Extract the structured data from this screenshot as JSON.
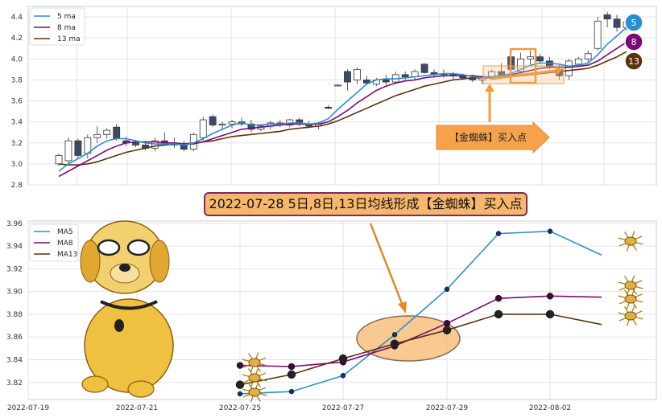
{
  "title": "2022-07-28 5日,8日,13日均线形成【金蜘蛛】买入点",
  "buy_label": "【金蜘蛛】买入点",
  "badges": [
    "5",
    "8",
    "13"
  ],
  "colors": {
    "ma5": "#2a8fd0",
    "ma8": "#7a0a7a",
    "ma13": "#5a3210",
    "candle_up": "#ffffff",
    "candle_down": "#3b4a6b",
    "highlight": "#f39c3c"
  },
  "chart_data": [
    {
      "type": "candlestick",
      "legend": [
        "5 ma",
        "8 ma",
        "13 ma"
      ],
      "legend_position": "top-left",
      "grid": true,
      "ylim": [
        2.8,
        4.5
      ],
      "yticks": [
        "2.8",
        "3.0",
        "3.2",
        "3.4",
        "3.6",
        "3.8",
        "4.0",
        "4.2",
        "4.4"
      ],
      "candles": [
        {
          "o": 3.0,
          "h": 3.1,
          "l": 2.98,
          "c": 3.08
        },
        {
          "o": 3.03,
          "h": 3.25,
          "l": 3.0,
          "c": 3.22
        },
        {
          "o": 3.22,
          "h": 3.24,
          "l": 3.05,
          "c": 3.08
        },
        {
          "o": 3.1,
          "h": 3.28,
          "l": 3.05,
          "c": 3.25
        },
        {
          "o": 3.25,
          "h": 3.36,
          "l": 3.2,
          "c": 3.28
        },
        {
          "o": 3.28,
          "h": 3.34,
          "l": 3.24,
          "c": 3.32
        },
        {
          "o": 3.35,
          "h": 3.38,
          "l": 3.22,
          "c": 3.24
        },
        {
          "o": 3.22,
          "h": 3.26,
          "l": 3.17,
          "c": 3.2
        },
        {
          "o": 3.2,
          "h": 3.23,
          "l": 3.16,
          "c": 3.18
        },
        {
          "o": 3.18,
          "h": 3.22,
          "l": 3.13,
          "c": 3.15
        },
        {
          "o": 3.15,
          "h": 3.25,
          "l": 3.12,
          "c": 3.22
        },
        {
          "o": 3.22,
          "h": 3.3,
          "l": 3.18,
          "c": 3.2
        },
        {
          "o": 3.2,
          "h": 3.25,
          "l": 3.15,
          "c": 3.18
        },
        {
          "o": 3.18,
          "h": 3.22,
          "l": 3.12,
          "c": 3.14
        },
        {
          "o": 3.14,
          "h": 3.3,
          "l": 3.12,
          "c": 3.28
        },
        {
          "o": 3.25,
          "h": 3.45,
          "l": 3.22,
          "c": 3.42
        },
        {
          "o": 3.45,
          "h": 3.47,
          "l": 3.35,
          "c": 3.37
        },
        {
          "o": 3.37,
          "h": 3.4,
          "l": 3.32,
          "c": 3.38
        },
        {
          "o": 3.38,
          "h": 3.42,
          "l": 3.34,
          "c": 3.4
        },
        {
          "o": 3.4,
          "h": 3.44,
          "l": 3.36,
          "c": 3.38
        },
        {
          "o": 3.38,
          "h": 3.42,
          "l": 3.3,
          "c": 3.33
        },
        {
          "o": 3.33,
          "h": 3.38,
          "l": 3.31,
          "c": 3.36
        },
        {
          "o": 3.36,
          "h": 3.41,
          "l": 3.33,
          "c": 3.39
        },
        {
          "o": 3.39,
          "h": 3.42,
          "l": 3.35,
          "c": 3.37
        },
        {
          "o": 3.37,
          "h": 3.43,
          "l": 3.35,
          "c": 3.42
        },
        {
          "o": 3.42,
          "h": 3.44,
          "l": 3.36,
          "c": 3.38
        },
        {
          "o": 3.38,
          "h": 3.41,
          "l": 3.34,
          "c": 3.36
        },
        {
          "o": 3.36,
          "h": 3.4,
          "l": 3.33,
          "c": 3.38
        },
        {
          "o": 3.54,
          "h": 3.56,
          "l": 3.52,
          "c": 3.53
        },
        {
          "o": 3.75,
          "h": 3.76,
          "l": 3.74,
          "c": 3.75
        },
        {
          "o": 3.88,
          "h": 3.9,
          "l": 3.7,
          "c": 3.78
        },
        {
          "o": 3.8,
          "h": 3.92,
          "l": 3.76,
          "c": 3.9
        },
        {
          "o": 3.8,
          "h": 3.84,
          "l": 3.76,
          "c": 3.77
        },
        {
          "o": 3.76,
          "h": 3.82,
          "l": 3.74,
          "c": 3.8
        },
        {
          "o": 3.8,
          "h": 3.85,
          "l": 3.75,
          "c": 3.78
        },
        {
          "o": 3.78,
          "h": 3.88,
          "l": 3.76,
          "c": 3.85
        },
        {
          "o": 3.85,
          "h": 3.88,
          "l": 3.8,
          "c": 3.83
        },
        {
          "o": 3.83,
          "h": 3.9,
          "l": 3.8,
          "c": 3.88
        },
        {
          "o": 3.95,
          "h": 3.96,
          "l": 3.86,
          "c": 3.87
        },
        {
          "o": 3.87,
          "h": 3.9,
          "l": 3.82,
          "c": 3.85
        },
        {
          "o": 3.85,
          "h": 3.9,
          "l": 3.82,
          "c": 3.86
        },
        {
          "o": 3.86,
          "h": 3.88,
          "l": 3.8,
          "c": 3.84
        },
        {
          "o": 3.84,
          "h": 3.86,
          "l": 3.8,
          "c": 3.82
        },
        {
          "o": 3.82,
          "h": 3.85,
          "l": 3.78,
          "c": 3.8
        },
        {
          "o": 3.8,
          "h": 3.84,
          "l": 3.76,
          "c": 3.82
        },
        {
          "o": 3.82,
          "h": 3.9,
          "l": 3.8,
          "c": 3.88
        },
        {
          "o": 3.88,
          "h": 3.96,
          "l": 3.82,
          "c": 3.84
        },
        {
          "o": 4.02,
          "h": 4.05,
          "l": 3.88,
          "c": 3.9
        },
        {
          "o": 3.88,
          "h": 4.06,
          "l": 3.85,
          "c": 4.0
        },
        {
          "o": 4.0,
          "h": 4.08,
          "l": 3.95,
          "c": 4.02
        },
        {
          "o": 4.02,
          "h": 4.05,
          "l": 3.96,
          "c": 3.98
        },
        {
          "o": 3.98,
          "h": 4.02,
          "l": 3.9,
          "c": 3.92
        },
        {
          "o": 3.9,
          "h": 3.94,
          "l": 3.8,
          "c": 3.84
        },
        {
          "o": 3.84,
          "h": 4.0,
          "l": 3.8,
          "c": 3.98
        },
        {
          "o": 3.95,
          "h": 4.02,
          "l": 3.92,
          "c": 4.0
        },
        {
          "o": 4.0,
          "h": 4.08,
          "l": 3.96,
          "c": 4.05
        },
        {
          "o": 4.1,
          "h": 4.4,
          "l": 4.08,
          "c": 4.36
        },
        {
          "o": 4.42,
          "h": 4.45,
          "l": 4.3,
          "c": 4.38
        },
        {
          "o": 4.38,
          "h": 4.42,
          "l": 4.26,
          "c": 4.3
        },
        {
          "o": 4.3,
          "h": 4.38,
          "l": 4.27,
          "c": 4.35
        }
      ],
      "ma5": [
        2.93,
        3.0,
        3.05,
        3.1,
        3.17,
        3.22,
        3.24,
        3.24,
        3.22,
        3.2,
        3.19,
        3.19,
        3.19,
        3.18,
        3.2,
        3.24,
        3.29,
        3.33,
        3.37,
        3.39,
        3.37,
        3.37,
        3.38,
        3.38,
        3.39,
        3.39,
        3.38,
        3.39,
        3.43,
        3.52,
        3.6,
        3.68,
        3.76,
        3.8,
        3.81,
        3.81,
        3.82,
        3.83,
        3.84,
        3.85,
        3.86,
        3.86,
        3.85,
        3.83,
        3.82,
        3.83,
        3.84,
        3.86,
        3.9,
        3.94,
        3.96,
        3.96,
        3.95,
        3.93,
        3.94,
        3.96,
        4.04,
        4.14,
        4.22,
        4.3
      ],
      "ma8": [
        2.88,
        2.93,
        2.98,
        3.03,
        3.08,
        3.13,
        3.17,
        3.2,
        3.21,
        3.21,
        3.21,
        3.2,
        3.2,
        3.19,
        3.19,
        3.21,
        3.24,
        3.27,
        3.3,
        3.33,
        3.34,
        3.35,
        3.36,
        3.37,
        3.38,
        3.38,
        3.38,
        3.38,
        3.4,
        3.45,
        3.51,
        3.58,
        3.64,
        3.7,
        3.74,
        3.77,
        3.79,
        3.8,
        3.82,
        3.83,
        3.84,
        3.84,
        3.84,
        3.84,
        3.83,
        3.83,
        3.84,
        3.85,
        3.87,
        3.89,
        3.91,
        3.92,
        3.92,
        3.92,
        3.93,
        3.94,
        3.98,
        4.04,
        4.1,
        4.16
      ],
      "ma13": [
        3.0,
        2.99,
        2.99,
        3.0,
        3.02,
        3.05,
        3.08,
        3.11,
        3.13,
        3.15,
        3.17,
        3.18,
        3.19,
        3.19,
        3.2,
        3.21,
        3.22,
        3.24,
        3.26,
        3.27,
        3.28,
        3.29,
        3.3,
        3.31,
        3.33,
        3.34,
        3.35,
        3.36,
        3.38,
        3.41,
        3.45,
        3.49,
        3.53,
        3.57,
        3.61,
        3.65,
        3.68,
        3.71,
        3.74,
        3.76,
        3.78,
        3.8,
        3.81,
        3.82,
        3.82,
        3.82,
        3.82,
        3.83,
        3.84,
        3.85,
        3.86,
        3.87,
        3.88,
        3.89,
        3.9,
        3.91,
        3.94,
        3.98,
        4.02,
        4.07
      ]
    },
    {
      "type": "line",
      "legend": [
        "MA5",
        "MA8",
        "MA13"
      ],
      "legend_position": "top-left",
      "grid": true,
      "ylim": [
        3.805,
        3.962
      ],
      "yticks": [
        "3.82",
        "3.84",
        "3.86",
        "3.88",
        "3.90",
        "3.92",
        "3.94",
        "3.96"
      ],
      "xticks": [
        "2022-07-19",
        "2022-07-21",
        "2022-07-25",
        "2022-07-27",
        "2022-07-29",
        "2022-08-02"
      ],
      "x": [
        "2022-07-25",
        "2022-07-26",
        "2022-07-27",
        "2022-07-28",
        "2022-07-29",
        "2022-08-01",
        "2022-08-02",
        "2022-08-03"
      ],
      "series": [
        {
          "name": "MA5",
          "values": [
            3.81,
            3.812,
            3.826,
            3.862,
            3.902,
            3.951,
            3.953,
            3.932
          ]
        },
        {
          "name": "MA8",
          "values": [
            3.835,
            3.834,
            3.838,
            3.852,
            3.872,
            3.894,
            3.896,
            3.895
          ]
        },
        {
          "name": "MA13",
          "values": [
            3.818,
            3.827,
            3.841,
            3.854,
            3.866,
            3.88,
            3.88,
            3.871
          ]
        }
      ]
    }
  ]
}
